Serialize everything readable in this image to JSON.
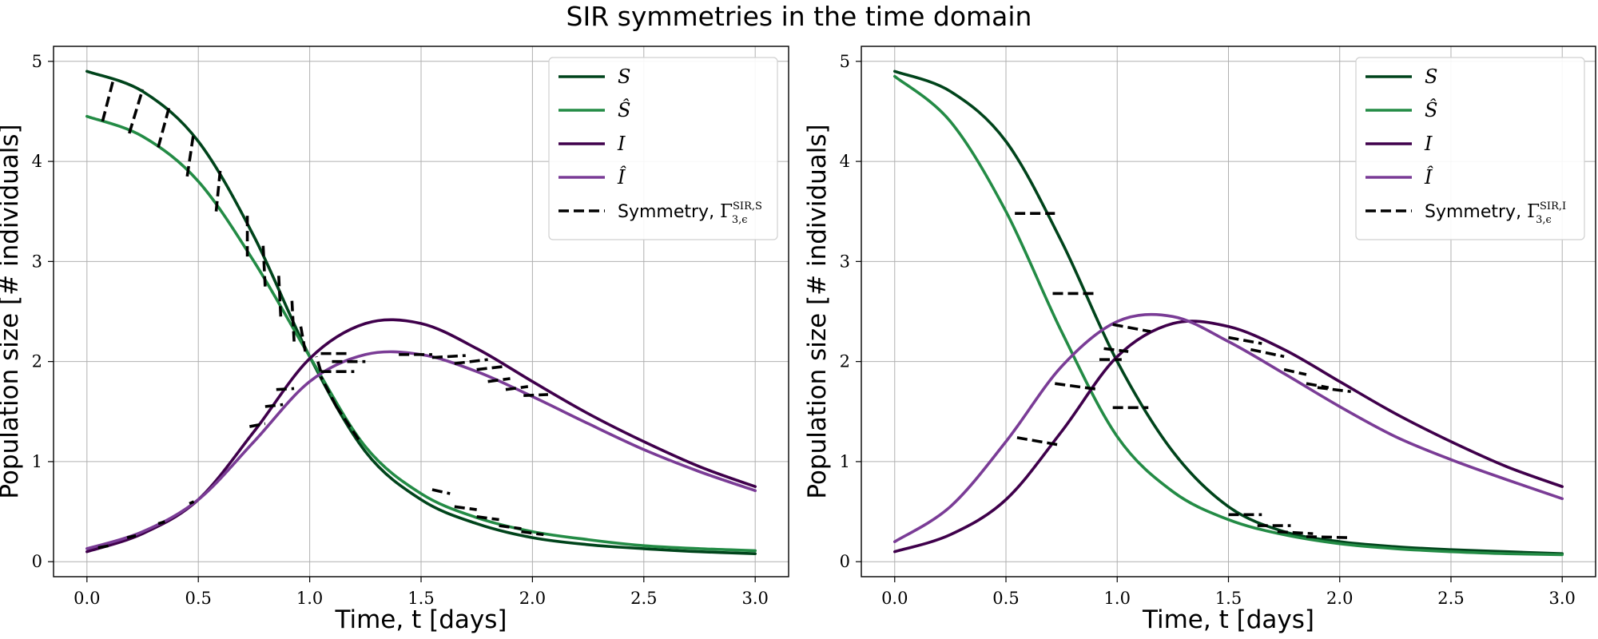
{
  "figure": {
    "title": "SIR symmetries in the time domain"
  },
  "colors": {
    "S": "#00441b",
    "S_hat": "#238b45",
    "I": "#3f004b",
    "I_hat": "#7a3c96",
    "symmetry": "#000000",
    "grid": "#b0b0b0"
  },
  "chart_data": [
    {
      "type": "line",
      "xlabel": "Time, t [days]",
      "ylabel": "Population size [# individuals]",
      "xlim": [
        -0.15,
        3.15
      ],
      "ylim": [
        -0.15,
        5.15
      ],
      "xticks": [
        0.0,
        0.5,
        1.0,
        1.5,
        2.0,
        2.5,
        3.0
      ],
      "xtick_labels": [
        "0.0",
        "0.5",
        "1.0",
        "1.5",
        "2.0",
        "2.5",
        "3.0"
      ],
      "yticks": [
        0,
        1,
        2,
        3,
        4,
        5
      ],
      "ytick_labels": [
        "0",
        "1",
        "2",
        "3",
        "4",
        "5"
      ],
      "grid": true,
      "legend_position": "top-right",
      "legend_symmetry_label": "Symmetry,",
      "legend_symmetry_symbol": "Γ",
      "legend_symmetry_sup": "SIR,S",
      "legend_symmetry_sub": "3,ϵ",
      "series": [
        {
          "name": "S",
          "key": "S",
          "x": [
            0,
            0.25,
            0.5,
            0.75,
            1.0,
            1.25,
            1.5,
            1.75,
            2.0,
            2.25,
            2.5,
            2.75,
            3.0
          ],
          "values": [
            4.9,
            4.7,
            4.2,
            3.25,
            2.05,
            1.1,
            0.62,
            0.38,
            0.24,
            0.17,
            0.13,
            0.1,
            0.08
          ]
        },
        {
          "name": "Ŝ",
          "key": "S_hat",
          "x": [
            0,
            0.25,
            0.5,
            0.75,
            1.0,
            1.25,
            1.5,
            1.75,
            2.0,
            2.25,
            2.5,
            2.75,
            3.0
          ],
          "values": [
            4.45,
            4.25,
            3.8,
            3.0,
            2.05,
            1.15,
            0.68,
            0.44,
            0.3,
            0.22,
            0.16,
            0.13,
            0.11
          ]
        },
        {
          "name": "I",
          "key": "I",
          "x": [
            0,
            0.25,
            0.5,
            0.75,
            1.0,
            1.25,
            1.5,
            1.75,
            2.0,
            2.25,
            2.5,
            2.75,
            3.0
          ],
          "values": [
            0.1,
            0.28,
            0.62,
            1.3,
            2.03,
            2.38,
            2.38,
            2.13,
            1.8,
            1.48,
            1.2,
            0.95,
            0.75
          ]
        },
        {
          "name": "Î",
          "key": "I_hat",
          "x": [
            0,
            0.25,
            0.5,
            0.75,
            1.0,
            1.25,
            1.5,
            1.75,
            2.0,
            2.25,
            2.5,
            2.75,
            3.0
          ],
          "values": [
            0.13,
            0.3,
            0.62,
            1.2,
            1.8,
            2.07,
            2.07,
            1.9,
            1.65,
            1.38,
            1.12,
            0.9,
            0.71
          ]
        }
      ],
      "symmetry_segments": [
        [
          [
            0.07,
            4.4
          ],
          [
            0.12,
            4.83
          ]
        ],
        [
          [
            0.19,
            4.28
          ],
          [
            0.25,
            4.72
          ]
        ],
        [
          [
            0.32,
            4.14
          ],
          [
            0.37,
            4.55
          ]
        ],
        [
          [
            0.45,
            3.85
          ],
          [
            0.48,
            4.3
          ]
        ],
        [
          [
            0.58,
            3.5
          ],
          [
            0.6,
            3.95
          ]
        ],
        [
          [
            0.72,
            3.05
          ],
          [
            0.72,
            3.5
          ]
        ],
        [
          [
            0.8,
            2.75
          ],
          [
            0.79,
            3.2
          ]
        ],
        [
          [
            0.87,
            2.45
          ],
          [
            0.86,
            2.9
          ]
        ],
        [
          [
            0.93,
            2.2
          ],
          [
            0.92,
            2.62
          ]
        ],
        [
          [
            0.98,
            2.1
          ],
          [
            0.96,
            2.35
          ]
        ],
        [
          [
            1.05,
            1.9
          ],
          [
            1.03,
            2.05
          ]
        ],
        [
          [
            1.12,
            1.55
          ],
          [
            1.05,
            1.85
          ]
        ],
        [
          [
            1.22,
            1.22
          ],
          [
            1.12,
            1.55
          ]
        ],
        [
          [
            0.05,
            0.14
          ],
          [
            0.1,
            0.16
          ]
        ],
        [
          [
            0.18,
            0.24
          ],
          [
            0.22,
            0.26
          ]
        ],
        [
          [
            0.32,
            0.38
          ],
          [
            0.35,
            0.4
          ]
        ],
        [
          [
            0.46,
            0.58
          ],
          [
            0.48,
            0.6
          ]
        ],
        [
          [
            0.73,
            1.35
          ],
          [
            0.8,
            1.38
          ]
        ],
        [
          [
            0.8,
            1.55
          ],
          [
            0.88,
            1.57
          ]
        ],
        [
          [
            0.85,
            1.72
          ],
          [
            0.93,
            1.73
          ]
        ],
        [
          [
            1.05,
            2.08
          ],
          [
            1.18,
            2.08
          ]
        ],
        [
          [
            1.1,
            2.0
          ],
          [
            1.25,
            2.0
          ]
        ],
        [
          [
            1.05,
            1.9
          ],
          [
            1.2,
            1.9
          ]
        ],
        [
          [
            1.4,
            2.07
          ],
          [
            1.55,
            2.07
          ]
        ],
        [
          [
            1.55,
            2.04
          ],
          [
            1.7,
            2.06
          ]
        ],
        [
          [
            1.65,
            1.98
          ],
          [
            1.8,
            2.02
          ]
        ],
        [
          [
            1.75,
            1.92
          ],
          [
            1.87,
            1.95
          ]
        ],
        [
          [
            1.8,
            1.8
          ],
          [
            1.9,
            1.83
          ]
        ],
        [
          [
            1.88,
            1.72
          ],
          [
            1.98,
            1.75
          ]
        ],
        [
          [
            1.96,
            1.66
          ],
          [
            2.07,
            1.67
          ]
        ],
        [
          [
            1.55,
            0.72
          ],
          [
            1.63,
            0.68
          ]
        ],
        [
          [
            1.65,
            0.55
          ],
          [
            1.75,
            0.52
          ]
        ],
        [
          [
            1.75,
            0.45
          ],
          [
            1.85,
            0.42
          ]
        ],
        [
          [
            1.85,
            0.36
          ],
          [
            1.95,
            0.33
          ]
        ],
        [
          [
            1.95,
            0.3
          ],
          [
            2.05,
            0.27
          ]
        ]
      ]
    },
    {
      "type": "line",
      "xlabel": "Time, t [days]",
      "ylabel": "Population size [# individuals]",
      "xlim": [
        -0.15,
        3.15
      ],
      "ylim": [
        -0.15,
        5.15
      ],
      "xticks": [
        0.0,
        0.5,
        1.0,
        1.5,
        2.0,
        2.5,
        3.0
      ],
      "xtick_labels": [
        "0.0",
        "0.5",
        "1.0",
        "1.5",
        "2.0",
        "2.5",
        "3.0"
      ],
      "yticks": [
        0,
        1,
        2,
        3,
        4,
        5
      ],
      "ytick_labels": [
        "0",
        "1",
        "2",
        "3",
        "4",
        "5"
      ],
      "grid": true,
      "legend_position": "top-right",
      "legend_symmetry_label": "Symmetry,",
      "legend_symmetry_symbol": "Γ",
      "legend_symmetry_sup": "SIR,I",
      "legend_symmetry_sub": "3,ϵ",
      "series": [
        {
          "name": "S",
          "key": "S",
          "x": [
            0,
            0.25,
            0.5,
            0.75,
            1.0,
            1.25,
            1.5,
            1.75,
            2.0,
            2.25,
            2.5,
            2.75,
            3.0
          ],
          "values": [
            4.9,
            4.7,
            4.2,
            3.2,
            2.0,
            1.1,
            0.55,
            0.3,
            0.2,
            0.15,
            0.12,
            0.1,
            0.08
          ]
        },
        {
          "name": "Ŝ",
          "key": "S_hat",
          "x": [
            0,
            0.25,
            0.5,
            0.75,
            1.0,
            1.25,
            1.5,
            1.75,
            2.0,
            2.25,
            2.5,
            2.75,
            3.0
          ],
          "values": [
            4.85,
            4.4,
            3.5,
            2.3,
            1.25,
            0.7,
            0.42,
            0.27,
            0.18,
            0.13,
            0.1,
            0.08,
            0.07
          ]
        },
        {
          "name": "I",
          "key": "I",
          "x": [
            0,
            0.25,
            0.5,
            0.75,
            1.0,
            1.25,
            1.5,
            1.75,
            2.0,
            2.25,
            2.5,
            2.75,
            3.0
          ],
          "values": [
            0.1,
            0.27,
            0.62,
            1.3,
            2.05,
            2.38,
            2.35,
            2.12,
            1.8,
            1.48,
            1.2,
            0.95,
            0.75
          ]
        },
        {
          "name": "Î",
          "key": "I_hat",
          "x": [
            0,
            0.25,
            0.5,
            0.75,
            1.0,
            1.25,
            1.5,
            1.75,
            2.0,
            2.25,
            2.5,
            2.75,
            3.0
          ],
          "values": [
            0.2,
            0.55,
            1.2,
            1.95,
            2.4,
            2.45,
            2.2,
            1.88,
            1.55,
            1.25,
            1.02,
            0.82,
            0.63
          ]
        }
      ],
      "symmetry_segments": [
        [
          [
            0.54,
            3.48
          ],
          [
            0.72,
            3.48
          ]
        ],
        [
          [
            0.71,
            2.68
          ],
          [
            0.9,
            2.68
          ]
        ],
        [
          [
            0.72,
            1.78
          ],
          [
            0.92,
            1.72
          ]
        ],
        [
          [
            0.55,
            1.24
          ],
          [
            0.73,
            1.17
          ]
        ],
        [
          [
            0.92,
            2.02
          ],
          [
            1.02,
            2.02
          ]
        ],
        [
          [
            0.94,
            2.13
          ],
          [
            1.05,
            2.1
          ]
        ],
        [
          [
            0.98,
            2.37
          ],
          [
            1.15,
            2.3
          ]
        ],
        [
          [
            0.98,
            1.54
          ],
          [
            1.14,
            1.54
          ]
        ],
        [
          [
            1.5,
            2.24
          ],
          [
            1.65,
            2.18
          ]
        ],
        [
          [
            1.6,
            2.12
          ],
          [
            1.75,
            2.05
          ]
        ],
        [
          [
            1.75,
            1.92
          ],
          [
            1.85,
            1.87
          ]
        ],
        [
          [
            1.85,
            1.78
          ],
          [
            1.95,
            1.74
          ]
        ],
        [
          [
            1.9,
            1.74
          ],
          [
            2.05,
            1.7
          ]
        ],
        [
          [
            1.5,
            0.47
          ],
          [
            1.65,
            0.47
          ]
        ],
        [
          [
            1.63,
            0.36
          ],
          [
            1.78,
            0.36
          ]
        ],
        [
          [
            1.72,
            0.3
          ],
          [
            1.88,
            0.28
          ]
        ],
        [
          [
            1.85,
            0.25
          ],
          [
            2.05,
            0.24
          ]
        ]
      ]
    }
  ]
}
